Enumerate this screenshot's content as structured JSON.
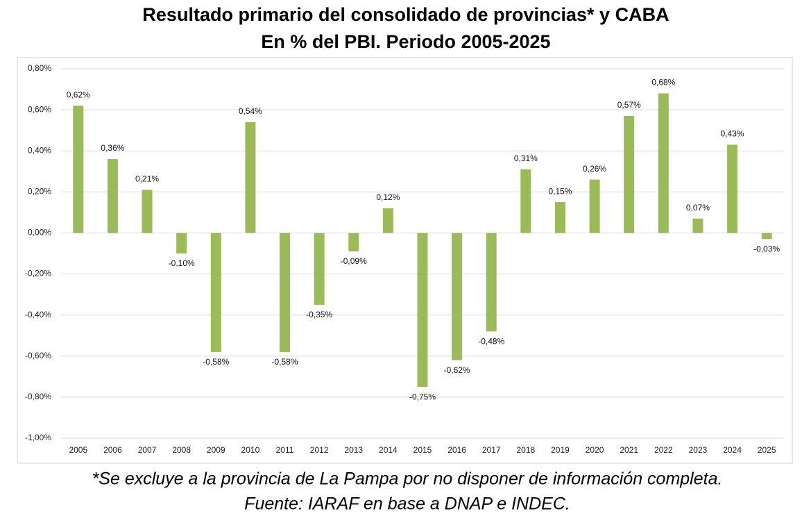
{
  "chart_data": {
    "type": "bar",
    "title": "Resultado primario del consolidado de provincias* y CABA",
    "subtitle": "En % del PBI. Periodo 2005-2025",
    "notes": [
      "*Se excluye a la provincia de La Pampa por no disponer de información completa.",
      "Fuente: IARAF en base a DNAP e INDEC."
    ],
    "categories": [
      "2005",
      "2006",
      "2007",
      "2008",
      "2009",
      "2010",
      "2011",
      "2012",
      "2013",
      "2014",
      "2015",
      "2016",
      "2017",
      "2018",
      "2019",
      "2020",
      "2021",
      "2022",
      "2023",
      "2024",
      "2025"
    ],
    "values": [
      0.62,
      0.36,
      0.21,
      -0.1,
      -0.58,
      0.54,
      -0.58,
      -0.35,
      -0.09,
      0.12,
      -0.75,
      -0.62,
      -0.48,
      0.31,
      0.15,
      0.26,
      0.57,
      0.68,
      0.07,
      0.43,
      -0.03
    ],
    "value_labels": [
      "0,62%",
      "0,36%",
      "0,21%",
      "-0,10%",
      "-0,58%",
      "0,54%",
      "-0,58%",
      "-0,35%",
      "-0,09%",
      "0,12%",
      "-0,75%",
      "-0,62%",
      "-0,48%",
      "0,31%",
      "0,15%",
      "0,26%",
      "0,57%",
      "0,68%",
      "0,07%",
      "0,43%",
      "-0,03%"
    ],
    "color": "#9bbb59",
    "ylim": [
      -1.0,
      0.8
    ],
    "yticks": [
      {
        "value": -1.0,
        "label": "-1,00%"
      },
      {
        "value": -0.8,
        "label": "-0,80%"
      },
      {
        "value": -0.6,
        "label": "-0,60%"
      },
      {
        "value": -0.4,
        "label": "-0,40%"
      },
      {
        "value": -0.2,
        "label": "-0,20%"
      },
      {
        "value": 0,
        "label": "0,00%"
      },
      {
        "value": 0.2,
        "label": "0,20%"
      },
      {
        "value": 0.4,
        "label": "0,40%"
      },
      {
        "value": 0.6,
        "label": "0,60%"
      },
      {
        "value": 0.8,
        "label": "0,80%"
      }
    ],
    "grid": true
  }
}
